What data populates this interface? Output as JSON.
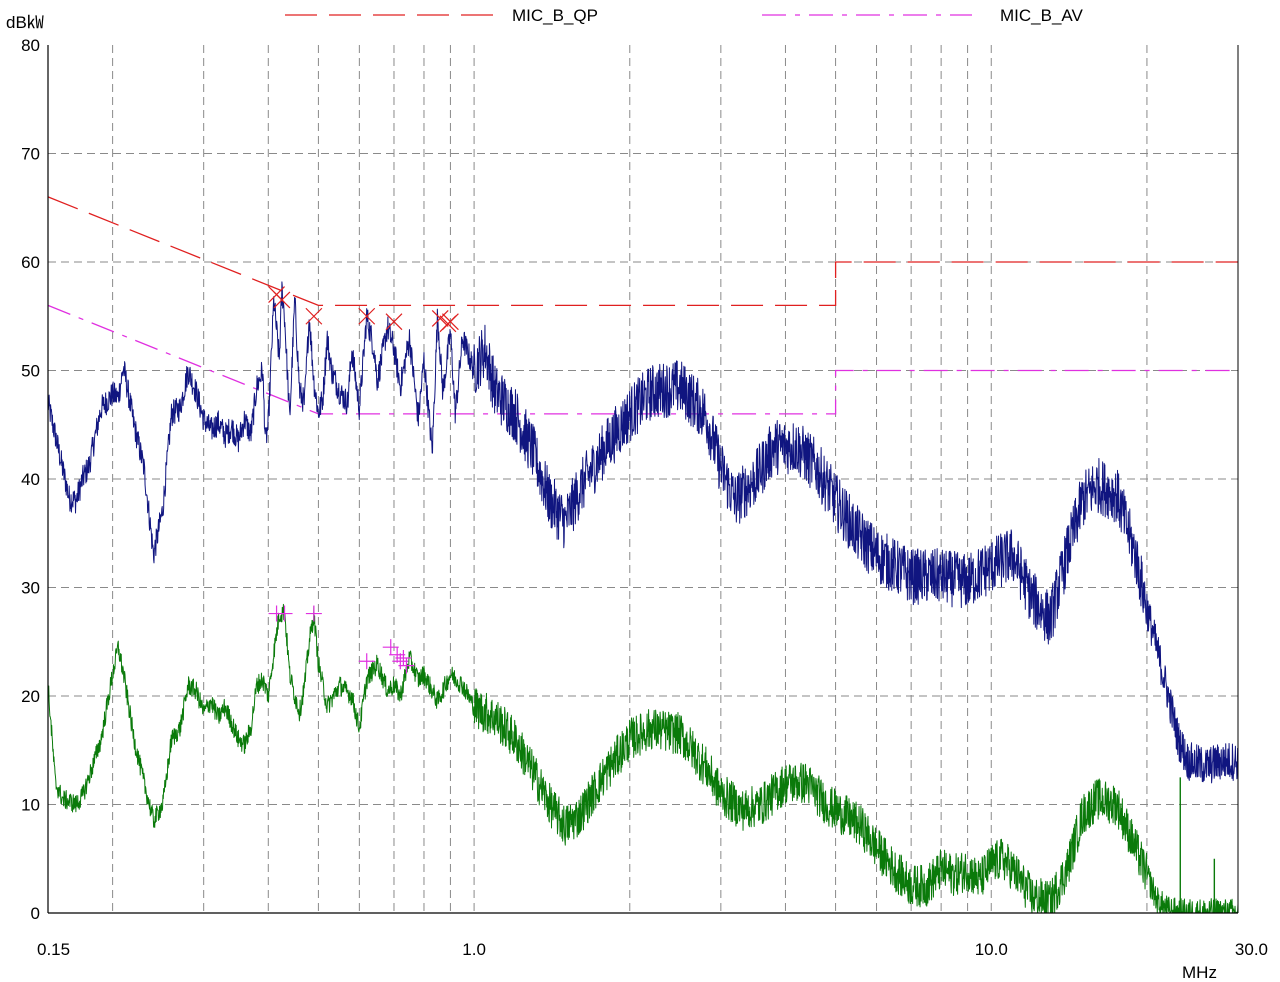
{
  "chart_data": {
    "type": "line",
    "title": "",
    "ylabel": "dB㎾",
    "xlabel": "MHz",
    "x_scale": "log",
    "xlim": [
      0.15,
      30.0
    ],
    "ylim": [
      0,
      80
    ],
    "grid": true,
    "legend_position": "top",
    "x_tick_labels": [
      {
        "value": 0.15,
        "label": "0.15"
      },
      {
        "value": 1.0,
        "label": "1.0"
      },
      {
        "value": 10.0,
        "label": "10.0"
      },
      {
        "value": 30.0,
        "label": "30.0"
      }
    ],
    "y_ticks": [
      0,
      10,
      20,
      30,
      40,
      50,
      60,
      70,
      80
    ],
    "limit_lines": [
      {
        "name": "MIC_B_QP",
        "color": "#e02020",
        "style": "long-dash",
        "points": [
          [
            0.15,
            66
          ],
          [
            0.5,
            56
          ],
          [
            5.0,
            56
          ],
          [
            5.0,
            60
          ],
          [
            30.0,
            60
          ]
        ]
      },
      {
        "name": "MIC_B_AV",
        "color": "#e030e0",
        "style": "dash-dot",
        "points": [
          [
            0.15,
            56
          ],
          [
            0.5,
            46
          ],
          [
            5.0,
            46
          ],
          [
            5.0,
            50
          ],
          [
            30.0,
            50
          ]
        ]
      }
    ],
    "series": [
      {
        "color": "#101580",
        "trace": "quasi-peak",
        "points": [
          [
            0.15,
            47
          ],
          [
            0.155,
            44
          ],
          [
            0.16,
            41
          ],
          [
            0.165,
            38.2
          ],
          [
            0.17,
            38
          ],
          [
            0.175,
            40
          ],
          [
            0.18,
            41.2
          ],
          [
            0.19,
            46.5
          ],
          [
            0.2,
            47.8
          ],
          [
            0.205,
            47.5
          ],
          [
            0.21,
            50.3
          ],
          [
            0.22,
            45
          ],
          [
            0.23,
            41
          ],
          [
            0.24,
            33
          ],
          [
            0.25,
            37.2
          ],
          [
            0.26,
            46
          ],
          [
            0.27,
            46.5
          ],
          [
            0.28,
            50
          ],
          [
            0.29,
            48
          ],
          [
            0.3,
            45.5
          ],
          [
            0.31,
            44.5
          ],
          [
            0.32,
            45.2
          ],
          [
            0.33,
            44
          ],
          [
            0.34,
            44.8
          ],
          [
            0.35,
            43.5
          ],
          [
            0.36,
            45.5
          ],
          [
            0.37,
            44
          ],
          [
            0.38,
            48.5
          ],
          [
            0.39,
            50
          ],
          [
            0.395,
            43.5
          ],
          [
            0.4,
            45
          ],
          [
            0.41,
            56.5
          ],
          [
            0.42,
            51
          ],
          [
            0.425,
            57.5
          ],
          [
            0.43,
            55
          ],
          [
            0.44,
            45.5
          ],
          [
            0.45,
            56.5
          ],
          [
            0.46,
            48
          ],
          [
            0.47,
            47
          ],
          [
            0.48,
            55
          ],
          [
            0.49,
            49
          ],
          [
            0.5,
            46
          ],
          [
            0.51,
            47.5
          ],
          [
            0.52,
            53
          ],
          [
            0.53,
            50
          ],
          [
            0.55,
            48
          ],
          [
            0.57,
            47
          ],
          [
            0.58,
            52
          ],
          [
            0.6,
            46.5
          ],
          [
            0.62,
            55
          ],
          [
            0.64,
            52
          ],
          [
            0.65,
            49
          ],
          [
            0.68,
            54
          ],
          [
            0.7,
            52
          ],
          [
            0.72,
            48.5
          ],
          [
            0.75,
            53
          ],
          [
            0.78,
            45.5
          ],
          [
            0.8,
            51
          ],
          [
            0.83,
            42.5
          ],
          [
            0.85,
            55.2
          ],
          [
            0.87,
            48
          ],
          [
            0.9,
            53.5
          ],
          [
            0.92,
            46
          ],
          [
            0.95,
            53
          ],
          [
            1.0,
            50
          ],
          [
            1.05,
            52
          ],
          [
            1.1,
            48
          ],
          [
            1.2,
            46
          ],
          [
            1.3,
            42.5
          ],
          [
            1.4,
            38
          ],
          [
            1.5,
            36
          ],
          [
            1.6,
            39
          ],
          [
            1.8,
            43
          ],
          [
            2.0,
            46
          ],
          [
            2.2,
            48
          ],
          [
            2.5,
            48.5
          ],
          [
            2.8,
            46
          ],
          [
            3.0,
            41
          ],
          [
            3.2,
            38
          ],
          [
            3.5,
            40
          ],
          [
            3.8,
            43
          ],
          [
            4.2,
            43
          ],
          [
            4.6,
            41
          ],
          [
            5.0,
            38
          ],
          [
            5.5,
            35
          ],
          [
            6.0,
            33
          ],
          [
            7.0,
            31
          ],
          [
            8.0,
            31
          ],
          [
            9.0,
            30.5
          ],
          [
            10.0,
            32
          ],
          [
            11.0,
            33
          ],
          [
            12.0,
            29
          ],
          [
            13.0,
            27
          ],
          [
            14.0,
            33
          ],
          [
            15.0,
            38
          ],
          [
            16.0,
            39.5
          ],
          [
            17.5,
            38.5
          ],
          [
            19.0,
            33
          ],
          [
            20.0,
            28
          ],
          [
            21.0,
            24
          ],
          [
            22.0,
            20
          ],
          [
            23.0,
            16
          ],
          [
            24.0,
            14
          ],
          [
            26.0,
            13.5
          ],
          [
            28.0,
            14
          ],
          [
            30.0,
            14
          ]
        ]
      },
      {
        "color": "#0a7a0a",
        "trace": "average",
        "points": [
          [
            0.15,
            21
          ],
          [
            0.155,
            12
          ],
          [
            0.16,
            10.5
          ],
          [
            0.165,
            10.3
          ],
          [
            0.17,
            10
          ],
          [
            0.175,
            10.8
          ],
          [
            0.18,
            12.5
          ],
          [
            0.19,
            16
          ],
          [
            0.2,
            22
          ],
          [
            0.205,
            24.5
          ],
          [
            0.21,
            22
          ],
          [
            0.22,
            16
          ],
          [
            0.23,
            12
          ],
          [
            0.24,
            8.5
          ],
          [
            0.25,
            10
          ],
          [
            0.26,
            16
          ],
          [
            0.27,
            17
          ],
          [
            0.28,
            21
          ],
          [
            0.29,
            20.5
          ],
          [
            0.3,
            18.5
          ],
          [
            0.31,
            19.5
          ],
          [
            0.32,
            18
          ],
          [
            0.33,
            19
          ],
          [
            0.34,
            17.5
          ],
          [
            0.35,
            16
          ],
          [
            0.36,
            15.5
          ],
          [
            0.37,
            17
          ],
          [
            0.38,
            21
          ],
          [
            0.39,
            21.5
          ],
          [
            0.4,
            20
          ],
          [
            0.41,
            24
          ],
          [
            0.42,
            27.5
          ],
          [
            0.43,
            27.8
          ],
          [
            0.44,
            22
          ],
          [
            0.45,
            20
          ],
          [
            0.46,
            18.5
          ],
          [
            0.47,
            21
          ],
          [
            0.48,
            25
          ],
          [
            0.49,
            27.5
          ],
          [
            0.5,
            23
          ],
          [
            0.52,
            19
          ],
          [
            0.55,
            21
          ],
          [
            0.58,
            20
          ],
          [
            0.6,
            17
          ],
          [
            0.62,
            21.5
          ],
          [
            0.65,
            23
          ],
          [
            0.68,
            20.5
          ],
          [
            0.7,
            21
          ],
          [
            0.72,
            20
          ],
          [
            0.75,
            23.5
          ],
          [
            0.78,
            21.5
          ],
          [
            0.8,
            22
          ],
          [
            0.85,
            19.5
          ],
          [
            0.9,
            22
          ],
          [
            0.95,
            21
          ],
          [
            1.0,
            19
          ],
          [
            1.1,
            18
          ],
          [
            1.2,
            16
          ],
          [
            1.3,
            13
          ],
          [
            1.4,
            10
          ],
          [
            1.5,
            8
          ],
          [
            1.6,
            9
          ],
          [
            1.8,
            13
          ],
          [
            2.0,
            16
          ],
          [
            2.2,
            17
          ],
          [
            2.5,
            16.5
          ],
          [
            2.8,
            13.5
          ],
          [
            3.0,
            11
          ],
          [
            3.3,
            9.5
          ],
          [
            3.6,
            10
          ],
          [
            4.0,
            12
          ],
          [
            4.4,
            12
          ],
          [
            4.8,
            10
          ],
          [
            5.2,
            9
          ],
          [
            5.6,
            8
          ],
          [
            6.0,
            6
          ],
          [
            6.5,
            4
          ],
          [
            7.0,
            2.5
          ],
          [
            7.5,
            2.5
          ],
          [
            8.0,
            4
          ],
          [
            8.5,
            3.5
          ],
          [
            9.0,
            4
          ],
          [
            9.5,
            3
          ],
          [
            10.0,
            4.5
          ],
          [
            10.5,
            5
          ],
          [
            11.0,
            4
          ],
          [
            12.0,
            1.5
          ],
          [
            13.0,
            1
          ],
          [
            14.0,
            4
          ],
          [
            15.0,
            9
          ],
          [
            16.0,
            10.5
          ],
          [
            17.5,
            10
          ],
          [
            19.0,
            6
          ],
          [
            20.0,
            3.5
          ],
          [
            21.0,
            1
          ],
          [
            22.0,
            0.2
          ],
          [
            23.0,
            0
          ],
          [
            30.0,
            0
          ]
        ],
        "spikes": [
          [
            23.2,
            12.5
          ],
          [
            27.0,
            5
          ]
        ]
      }
    ],
    "peak_markers_qp": [
      [
        0.415,
        57
      ],
      [
        0.425,
        56.5
      ],
      [
        0.49,
        55
      ],
      [
        0.62,
        55
      ],
      [
        0.7,
        54.5
      ],
      [
        0.86,
        54.8
      ],
      [
        0.89,
        54.3
      ],
      [
        0.9,
        54.5
      ]
    ],
    "peak_markers_av": [
      [
        0.415,
        27.6
      ],
      [
        0.43,
        27.6
      ],
      [
        0.49,
        27.6
      ],
      [
        0.62,
        23.2
      ],
      [
        0.69,
        24.5
      ],
      [
        0.71,
        23.8
      ],
      [
        0.72,
        23.2
      ],
      [
        0.73,
        23.5
      ],
      [
        0.74,
        22.8
      ]
    ]
  }
}
